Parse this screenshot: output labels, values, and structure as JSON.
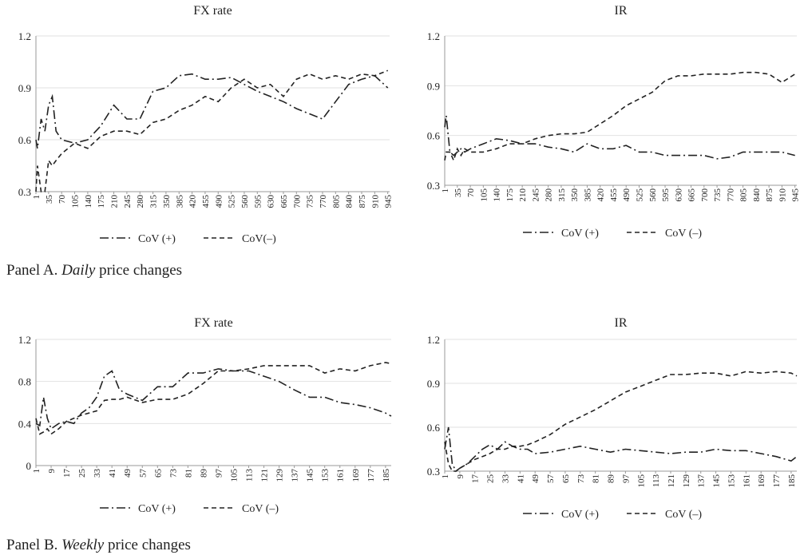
{
  "chart_data": [
    {
      "type": "line",
      "title": "FX rate",
      "x": [
        1,
        5,
        15,
        25,
        35,
        45,
        55,
        70,
        105,
        140,
        175,
        210,
        245,
        280,
        315,
        350,
        385,
        420,
        455,
        490,
        525,
        560,
        595,
        630,
        665,
        700,
        735,
        770,
        805,
        840,
        875,
        910,
        945
      ],
      "xlim": [
        1,
        950
      ],
      "xticks": [
        1,
        35,
        70,
        105,
        140,
        175,
        210,
        245,
        280,
        315,
        350,
        385,
        420,
        455,
        490,
        525,
        560,
        595,
        630,
        665,
        700,
        735,
        770,
        805,
        840,
        875,
        910,
        945
      ],
      "ylim": [
        0.3,
        1.2
      ],
      "yticks": [
        0.3,
        0.6,
        0.9,
        1.2
      ],
      "grid": true,
      "series": [
        {
          "name": "CoV (+)",
          "color": "#222222",
          "dash": "dash-dot",
          "values": [
            0.6,
            0.55,
            0.72,
            0.65,
            0.8,
            0.85,
            0.65,
            0.6,
            0.58,
            0.6,
            0.68,
            0.8,
            0.72,
            0.72,
            0.88,
            0.9,
            0.97,
            0.98,
            0.95,
            0.95,
            0.96,
            0.92,
            0.88,
            0.85,
            0.82,
            0.78,
            0.75,
            0.72,
            0.82,
            0.92,
            0.95,
            0.97,
            0.9
          ]
        },
        {
          "name": "CoV(–)",
          "color": "#222222",
          "dash": "dash",
          "values": [
            0.3,
            0.45,
            0.3,
            0.3,
            0.48,
            0.45,
            0.48,
            0.52,
            0.58,
            0.55,
            0.62,
            0.65,
            0.65,
            0.63,
            0.7,
            0.72,
            0.77,
            0.8,
            0.85,
            0.82,
            0.9,
            0.95,
            0.9,
            0.92,
            0.85,
            0.95,
            0.98,
            0.95,
            0.97,
            0.95,
            0.98,
            0.97,
            1.0
          ]
        }
      ]
    },
    {
      "type": "line",
      "title": "IR",
      "x": [
        1,
        5,
        15,
        25,
        35,
        45,
        55,
        70,
        105,
        140,
        175,
        210,
        245,
        280,
        315,
        350,
        385,
        420,
        455,
        490,
        525,
        560,
        595,
        630,
        665,
        700,
        735,
        770,
        805,
        840,
        875,
        910,
        945
      ],
      "xlim": [
        1,
        950
      ],
      "xticks": [
        1,
        35,
        70,
        105,
        140,
        175,
        210,
        245,
        280,
        315,
        350,
        385,
        420,
        455,
        490,
        525,
        560,
        595,
        630,
        665,
        700,
        735,
        770,
        805,
        840,
        875,
        910,
        945
      ],
      "ylim": [
        0.3,
        1.2
      ],
      "yticks": [
        0.3,
        0.6,
        0.9,
        1.2
      ],
      "grid": true,
      "series": [
        {
          "name": "CoV (+)",
          "color": "#222222",
          "dash": "dash-dot",
          "values": [
            0.65,
            0.72,
            0.5,
            0.48,
            0.5,
            0.52,
            0.5,
            0.52,
            0.55,
            0.58,
            0.57,
            0.55,
            0.55,
            0.53,
            0.52,
            0.5,
            0.55,
            0.52,
            0.52,
            0.54,
            0.5,
            0.5,
            0.48,
            0.48,
            0.48,
            0.48,
            0.46,
            0.47,
            0.5,
            0.5,
            0.5,
            0.5,
            0.48
          ]
        },
        {
          "name": "CoV (–)",
          "color": "#222222",
          "dash": "dash",
          "values": [
            0.45,
            0.5,
            0.5,
            0.45,
            0.52,
            0.48,
            0.52,
            0.5,
            0.5,
            0.52,
            0.55,
            0.55,
            0.58,
            0.6,
            0.61,
            0.61,
            0.62,
            0.67,
            0.72,
            0.78,
            0.82,
            0.86,
            0.93,
            0.96,
            0.96,
            0.97,
            0.97,
            0.97,
            0.98,
            0.98,
            0.97,
            0.92,
            0.97
          ]
        }
      ]
    },
    {
      "type": "line",
      "title": "FX rate",
      "x": [
        1,
        3,
        5,
        7,
        9,
        13,
        17,
        21,
        25,
        29,
        33,
        37,
        41,
        45,
        49,
        57,
        65,
        73,
        81,
        89,
        97,
        105,
        113,
        121,
        129,
        137,
        145,
        153,
        161,
        169,
        177,
        185,
        188
      ],
      "xlim": [
        1,
        188
      ],
      "xticks": [
        1,
        9,
        17,
        25,
        33,
        41,
        49,
        57,
        65,
        73,
        81,
        89,
        97,
        105,
        113,
        121,
        129,
        137,
        145,
        153,
        161,
        169,
        177,
        185
      ],
      "ylim": [
        0,
        1.2
      ],
      "yticks": [
        0,
        0.4,
        0.8,
        1.2
      ],
      "grid": true,
      "series": [
        {
          "name": "CoV (+)",
          "color": "#222222",
          "dash": "dash-dot",
          "values": [
            0.4,
            0.38,
            0.65,
            0.45,
            0.35,
            0.4,
            0.42,
            0.4,
            0.5,
            0.55,
            0.65,
            0.85,
            0.9,
            0.72,
            0.68,
            0.62,
            0.75,
            0.75,
            0.88,
            0.88,
            0.92,
            0.9,
            0.9,
            0.85,
            0.8,
            0.72,
            0.65,
            0.65,
            0.6,
            0.58,
            0.55,
            0.5,
            0.47
          ]
        },
        {
          "name": "CoV (–)",
          "color": "#222222",
          "dash": "dash",
          "values": [
            0.45,
            0.3,
            0.32,
            0.35,
            0.3,
            0.35,
            0.42,
            0.45,
            0.48,
            0.5,
            0.52,
            0.62,
            0.63,
            0.63,
            0.65,
            0.6,
            0.63,
            0.63,
            0.68,
            0.78,
            0.9,
            0.9,
            0.92,
            0.95,
            0.95,
            0.95,
            0.95,
            0.88,
            0.92,
            0.9,
            0.95,
            0.98,
            0.97
          ]
        }
      ]
    },
    {
      "type": "line",
      "title": "IR",
      "x": [
        1,
        3,
        5,
        7,
        9,
        13,
        17,
        21,
        25,
        29,
        33,
        37,
        41,
        45,
        49,
        57,
        65,
        73,
        81,
        89,
        97,
        105,
        113,
        121,
        129,
        137,
        145,
        153,
        161,
        169,
        177,
        185,
        188
      ],
      "xlim": [
        1,
        188
      ],
      "xticks": [
        1,
        9,
        17,
        25,
        33,
        41,
        49,
        57,
        65,
        73,
        81,
        89,
        97,
        105,
        113,
        121,
        129,
        137,
        145,
        153,
        161,
        169,
        177,
        185
      ],
      "ylim": [
        0.3,
        1.2
      ],
      "yticks": [
        0.3,
        0.6,
        0.9,
        1.2
      ],
      "grid": true,
      "series": [
        {
          "name": "CoV (+)",
          "color": "#222222",
          "dash": "dash-dot",
          "values": [
            0.45,
            0.6,
            0.35,
            0.3,
            0.32,
            0.35,
            0.4,
            0.45,
            0.48,
            0.45,
            0.5,
            0.47,
            0.45,
            0.45,
            0.42,
            0.43,
            0.45,
            0.47,
            0.45,
            0.43,
            0.45,
            0.44,
            0.43,
            0.42,
            0.43,
            0.43,
            0.45,
            0.44,
            0.44,
            0.42,
            0.4,
            0.37,
            0.4
          ]
        },
        {
          "name": "CoV (–)",
          "color": "#222222",
          "dash": "dash",
          "values": [
            0.5,
            0.35,
            0.3,
            0.3,
            0.32,
            0.35,
            0.38,
            0.4,
            0.42,
            0.45,
            0.45,
            0.47,
            0.47,
            0.48,
            0.5,
            0.55,
            0.62,
            0.67,
            0.72,
            0.78,
            0.84,
            0.88,
            0.92,
            0.96,
            0.96,
            0.97,
            0.97,
            0.95,
            0.98,
            0.97,
            0.98,
            0.97,
            0.95
          ]
        }
      ]
    }
  ],
  "panels": [
    {
      "label": "Panel A.",
      "emphasis": "Daily",
      "rest": "price changes"
    },
    {
      "label": "Panel B.",
      "emphasis": "Weekly",
      "rest": "price changes"
    }
  ]
}
